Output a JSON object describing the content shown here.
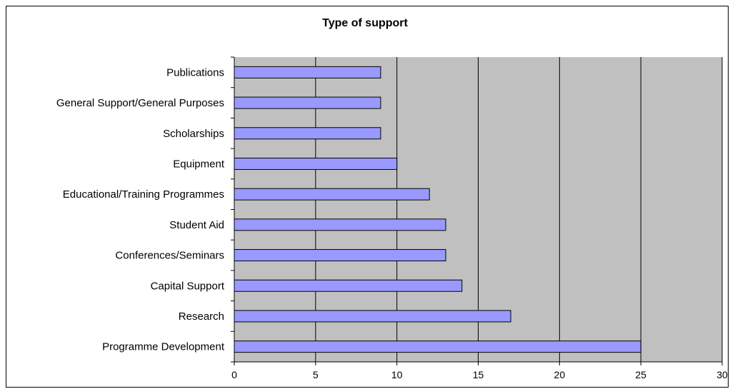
{
  "chart_data": {
    "type": "bar",
    "orientation": "horizontal",
    "title": "Type of support",
    "xlabel": "",
    "ylabel": "",
    "categories": [
      "Publications",
      "General Support/General Purposes",
      "Scholarships",
      "Equipment",
      "Educational/Training Programmes",
      "Student Aid",
      "Conferences/Seminars",
      "Capital Support",
      "Research",
      "Programme Development"
    ],
    "values": [
      9,
      9,
      9,
      10,
      12,
      13,
      13,
      14,
      17,
      25
    ],
    "xlim": [
      0,
      30
    ],
    "xticks": [
      0,
      5,
      10,
      15,
      20,
      25,
      30
    ],
    "grid": "vertical major gridlines",
    "legend": "none",
    "colors": {
      "bar_fill": "#9999ff",
      "bar_stroke": "#000000",
      "plot_background": "#c0c0c0",
      "gridline": "#000000"
    }
  }
}
